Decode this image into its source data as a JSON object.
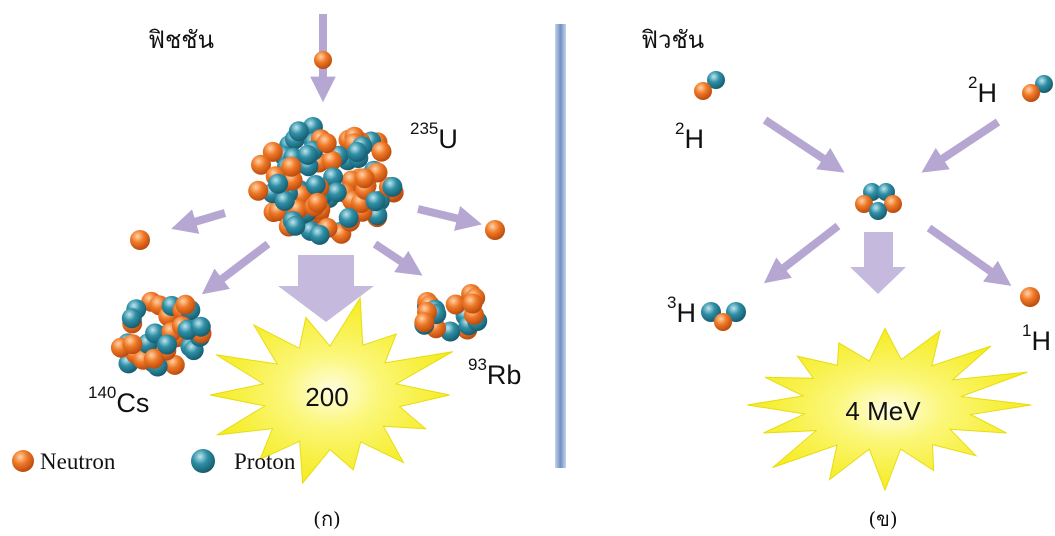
{
  "fission": {
    "title": "ฟิชชัน",
    "uranium": {
      "mass": "235",
      "symbol": "U"
    },
    "cesium": {
      "mass": "140",
      "symbol": "Cs"
    },
    "rubidium": {
      "mass": "93",
      "symbol": "Rb"
    },
    "energy": "200",
    "caption": "(ก)"
  },
  "fusion": {
    "title": "ฟิวชัน",
    "deuterium_left": {
      "mass": "2",
      "symbol": "H"
    },
    "deuterium_right": {
      "mass": "2",
      "symbol": "H"
    },
    "tritium": {
      "mass": "3",
      "symbol": "H"
    },
    "hydrogen": {
      "mass": "1",
      "symbol": "H"
    },
    "energy": "4 MeV",
    "caption": "(ข)"
  },
  "legend": {
    "neutron": "Neutron",
    "proton": "Proton"
  },
  "colors": {
    "neutron": "#f07a28",
    "proton": "#2f8fa6",
    "arrow": "#b5a6d2",
    "burst": "#f7f020",
    "divider": "#8ea9d0"
  }
}
